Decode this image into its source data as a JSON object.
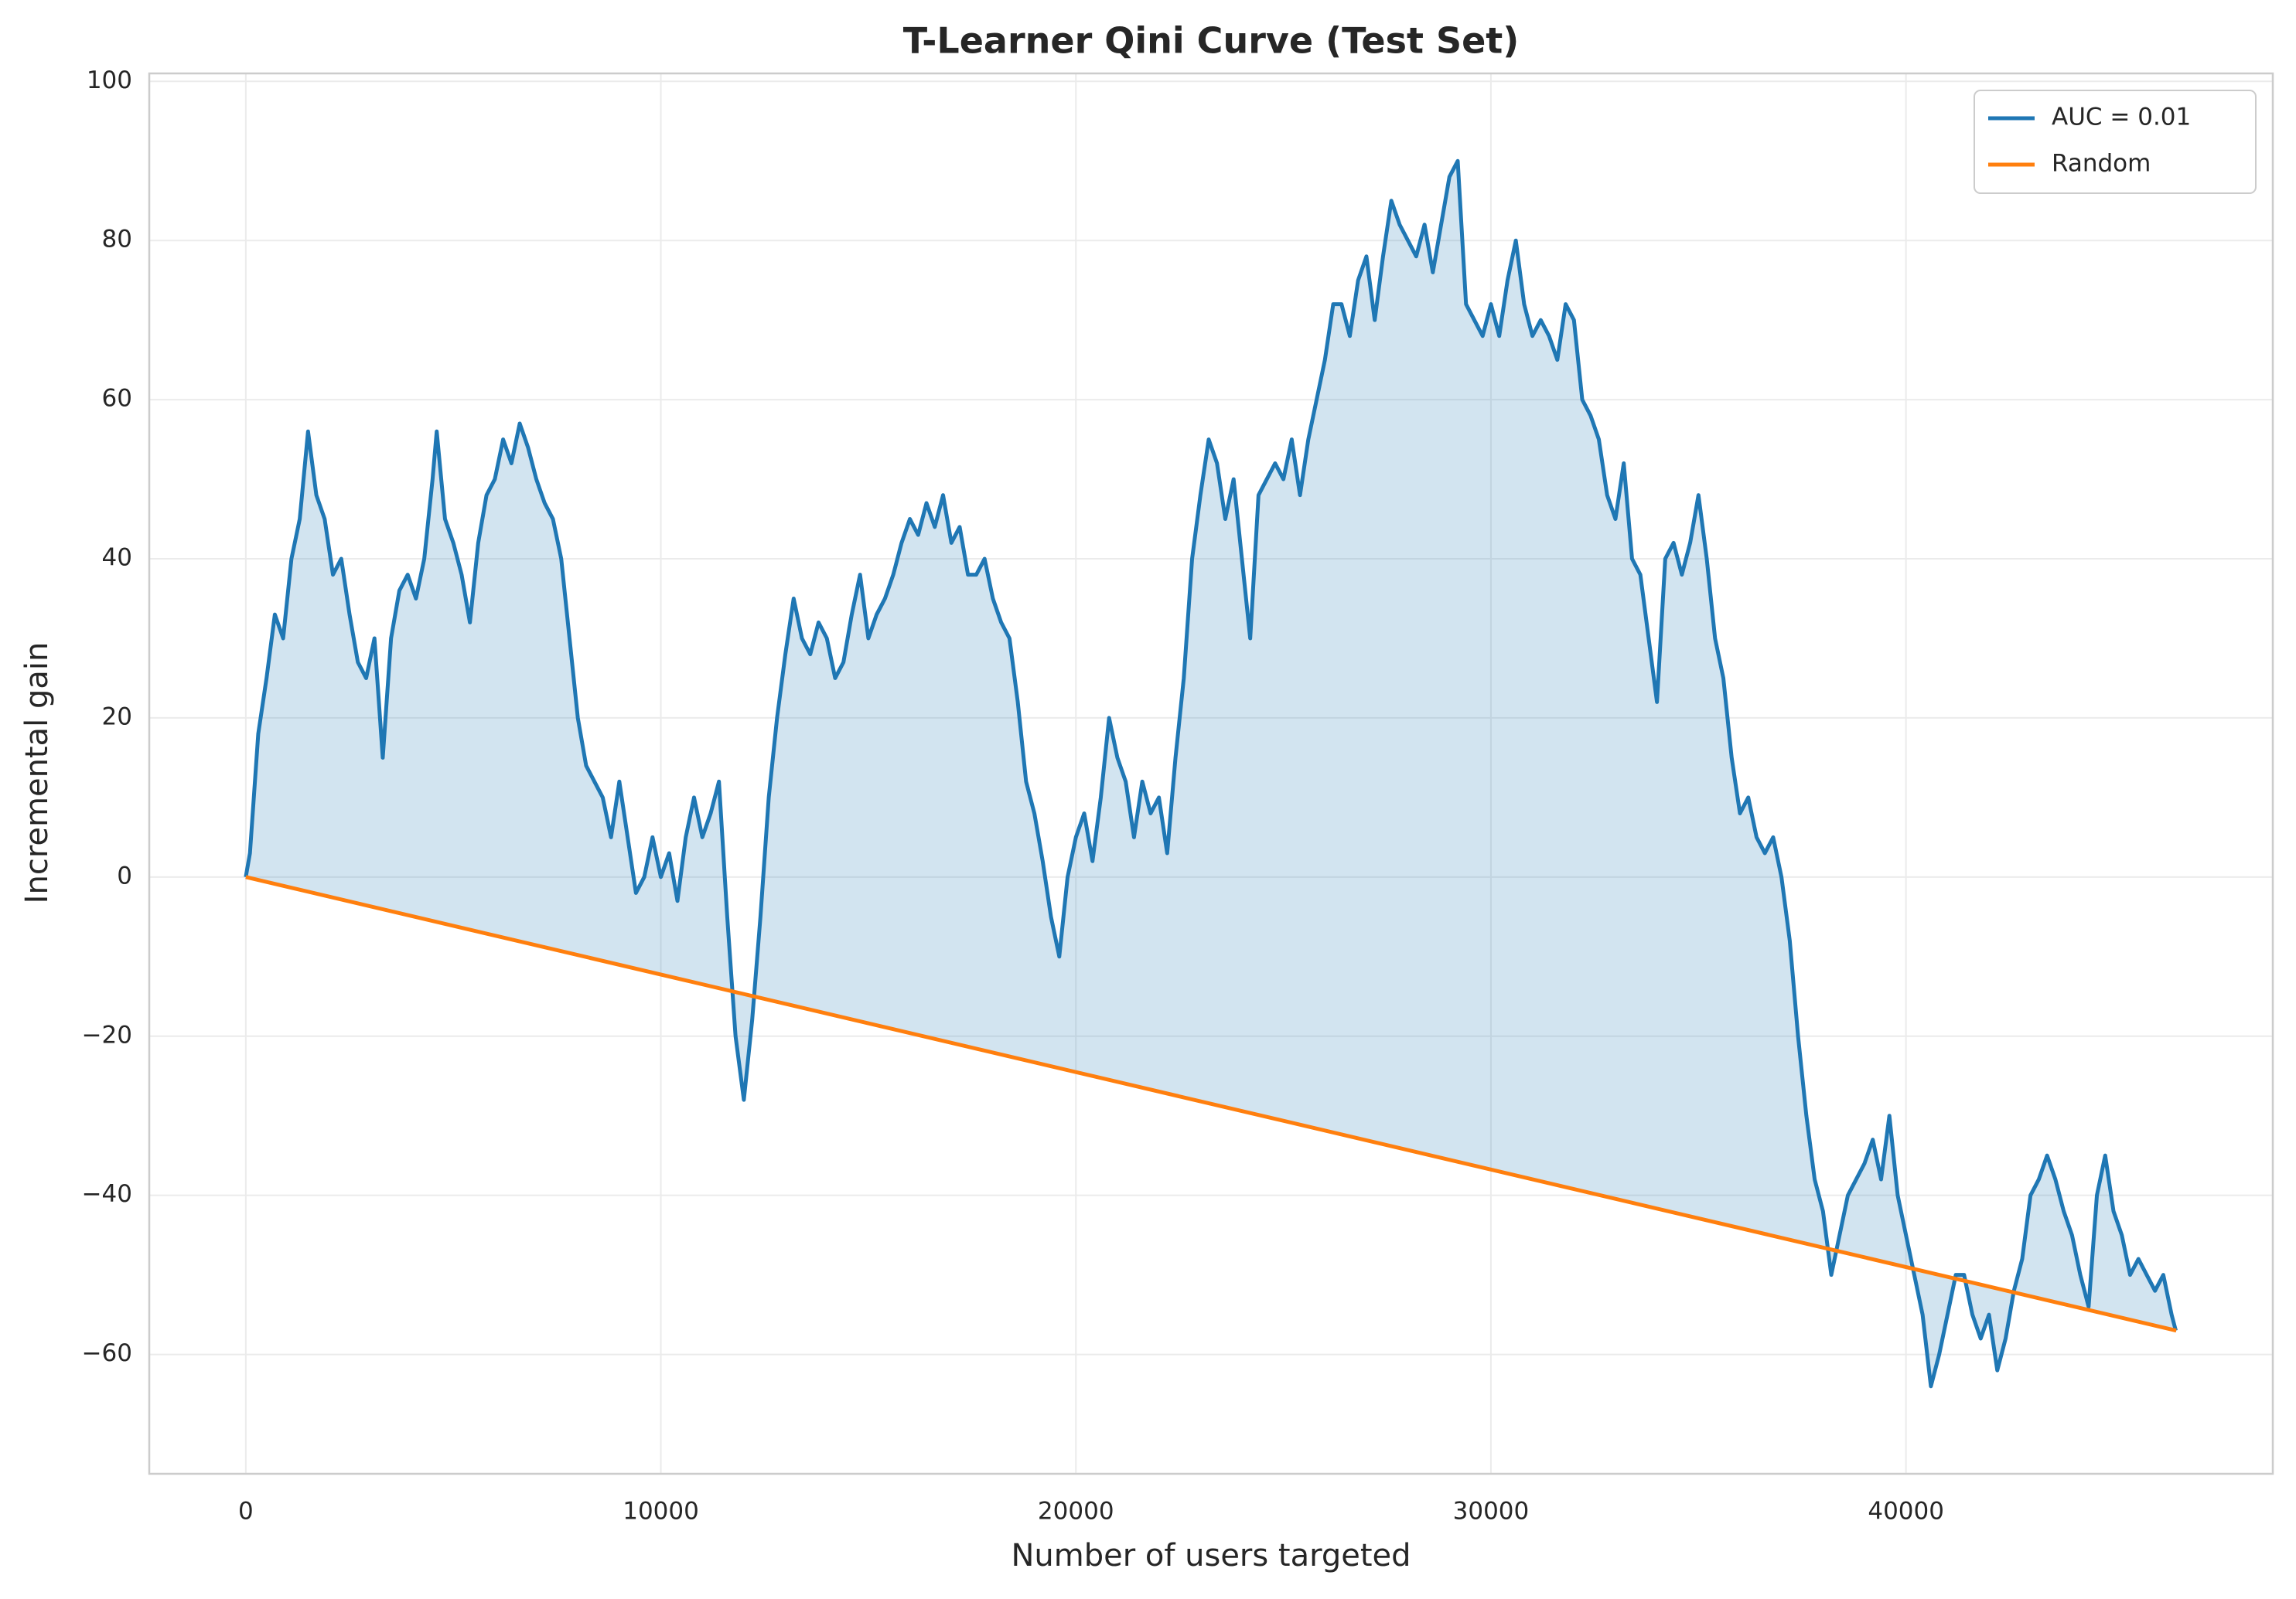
{
  "chart_data": {
    "type": "line",
    "title": "T-Learner Qini Curve (Test Set)",
    "x_label": "Number of users targeted",
    "y_label": "Incremental gain",
    "xlim": [
      -2326,
      48838
    ],
    "ylim": [
      -75,
      101
    ],
    "xticks": [
      0,
      10000,
      20000,
      30000,
      40000
    ],
    "yticks": [
      {
        "value": -60,
        "label": "−60"
      },
      {
        "value": -40,
        "label": "−40"
      },
      {
        "value": -20,
        "label": "−20"
      },
      0,
      20,
      40,
      60,
      80,
      100
    ],
    "grid": true,
    "legend": "upper right",
    "fill_between": true,
    "series": [
      {
        "name": "AUC = 0.01",
        "color": "#1f77b4",
        "x": [
          0,
          100,
          300,
          500,
          700,
          900,
          1100,
          1300,
          1500,
          1700,
          1900,
          2100,
          2300,
          2500,
          2700,
          2900,
          3100,
          3300,
          3500,
          3700,
          3900,
          4100,
          4300,
          4500,
          4600,
          4800,
          5000,
          5200,
          5400,
          5600,
          5800,
          6000,
          6200,
          6400,
          6600,
          6800,
          7000,
          7200,
          7400,
          7600,
          7800,
          8000,
          8200,
          8400,
          8600,
          8800,
          9000,
          9200,
          9400,
          9600,
          9800,
          10000,
          10200,
          10400,
          10600,
          10800,
          11000,
          11200,
          11400,
          11600,
          11800,
          12000,
          12200,
          12400,
          12600,
          12800,
          13000,
          13200,
          13400,
          13600,
          13800,
          14000,
          14200,
          14400,
          14600,
          14800,
          15000,
          15200,
          15400,
          15600,
          15800,
          16000,
          16200,
          16400,
          16600,
          16800,
          17000,
          17200,
          17400,
          17600,
          17800,
          18000,
          18200,
          18400,
          18600,
          18800,
          19000,
          19200,
          19400,
          19600,
          19800,
          20000,
          20200,
          20400,
          20600,
          20800,
          21000,
          21200,
          21400,
          21600,
          21800,
          22000,
          22200,
          22400,
          22600,
          22800,
          23000,
          23200,
          23400,
          23600,
          23800,
          24000,
          24200,
          24400,
          24600,
          24800,
          25000,
          25200,
          25400,
          25600,
          25800,
          26000,
          26200,
          26400,
          26600,
          26800,
          27000,
          27200,
          27400,
          27600,
          27800,
          28000,
          28200,
          28400,
          28600,
          28800,
          29000,
          29200,
          29400,
          29600,
          29800,
          30000,
          30200,
          30400,
          30600,
          30800,
          31000,
          31200,
          31400,
          31600,
          31800,
          32000,
          32200,
          32400,
          32600,
          32800,
          33000,
          33200,
          33400,
          33600,
          33800,
          34000,
          34200,
          34400,
          34600,
          34800,
          35000,
          35200,
          35400,
          35600,
          35800,
          36000,
          36200,
          36400,
          36600,
          36800,
          37000,
          37200,
          37400,
          37600,
          37800,
          38000,
          38200,
          38400,
          38600,
          38800,
          39000,
          39200,
          39400,
          39600,
          39800,
          40000,
          40200,
          40400,
          40600,
          40800,
          41000,
          41200,
          41400,
          41600,
          41800,
          42000,
          42200,
          42400,
          42600,
          42800,
          43000,
          43200,
          43400,
          43600,
          43800,
          44000,
          44200,
          44400,
          44600,
          44800,
          45000,
          45200,
          45400,
          45600,
          45800,
          46000,
          46200,
          46400,
          46500
        ],
        "values": [
          0,
          3,
          18,
          25,
          33,
          30,
          40,
          45,
          56,
          48,
          45,
          38,
          40,
          33,
          27,
          25,
          30,
          15,
          30,
          36,
          38,
          35,
          40,
          50,
          56,
          45,
          42,
          38,
          32,
          42,
          48,
          50,
          55,
          52,
          57,
          54,
          50,
          47,
          45,
          40,
          30,
          20,
          14,
          12,
          10,
          5,
          12,
          5,
          -2,
          0,
          5,
          0,
          3,
          -3,
          5,
          10,
          5,
          8,
          12,
          -5,
          -20,
          -28,
          -18,
          -5,
          10,
          20,
          28,
          35,
          30,
          28,
          32,
          30,
          25,
          27,
          33,
          38,
          30,
          33,
          35,
          38,
          42,
          45,
          43,
          47,
          44,
          48,
          42,
          44,
          38,
          38,
          40,
          35,
          32,
          30,
          22,
          12,
          8,
          2,
          -5,
          -10,
          0,
          5,
          8,
          2,
          10,
          20,
          15,
          12,
          5,
          12,
          8,
          10,
          3,
          15,
          25,
          40,
          48,
          55,
          52,
          45,
          50,
          40,
          30,
          48,
          50,
          52,
          50,
          55,
          48,
          55,
          60,
          65,
          72,
          72,
          68,
          75,
          78,
          70,
          78,
          85,
          82,
          80,
          78,
          82,
          76,
          82,
          88,
          90,
          72,
          70,
          68,
          72,
          68,
          75,
          80,
          72,
          68,
          70,
          68,
          65,
          72,
          70,
          60,
          58,
          55,
          48,
          45,
          52,
          40,
          38,
          30,
          22,
          40,
          42,
          38,
          42,
          48,
          40,
          30,
          25,
          15,
          8,
          10,
          5,
          3,
          5,
          0,
          -8,
          -20,
          -30,
          -38,
          -42,
          -50,
          -45,
          -40,
          -38,
          -36,
          -33,
          -38,
          -30,
          -40,
          -45,
          -50,
          -55,
          -64,
          -60,
          -55,
          -50,
          -50,
          -55,
          -58,
          -55,
          -62,
          -58,
          -52,
          -48,
          -40,
          -38,
          -35,
          -38,
          -42,
          -45,
          -50,
          -54,
          -40,
          -35,
          -42,
          -45,
          -50,
          -48,
          -50,
          -52,
          -50,
          -55,
          -57
        ]
      },
      {
        "name": "Random",
        "color": "#ff7f0e",
        "x": [
          0,
          46512
        ],
        "values": [
          0,
          -57
        ]
      }
    ]
  }
}
